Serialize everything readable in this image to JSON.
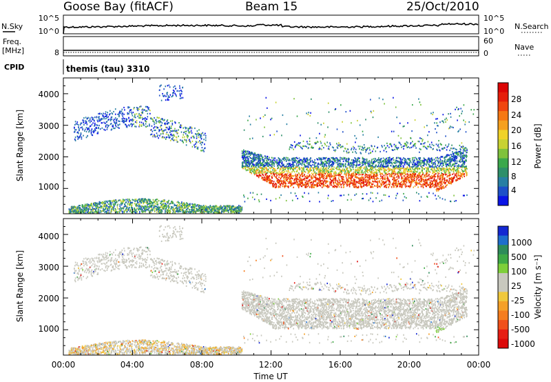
{
  "header": {
    "station": "Goose Bay (fitACF)",
    "beam": "Beam 15",
    "date": "25/Oct/2010"
  },
  "nsky_panel": {
    "left_label": "N.Sky",
    "left_ticks": [
      "10^5",
      "10^0"
    ],
    "right_ticks": [
      "10^5",
      "10^0"
    ],
    "right_label": "N.Search"
  },
  "freq_panel": {
    "left_label_1": "Freq.",
    "left_label_2": "[MHz]",
    "left_tick": "8",
    "right_ticks": [
      "60",
      "0"
    ],
    "right_label": "Nave"
  },
  "cpid": {
    "label": "CPID",
    "value": "themis (tau) 3310"
  },
  "chart_data": [
    {
      "type": "heatmap",
      "panel": "power",
      "ylabel": "Slant Range [km]",
      "yticks": [
        "1000",
        "2000",
        "3000",
        "4000"
      ],
      "ylim": [
        200,
        4500
      ],
      "colorbar": {
        "label": "Power [dB]",
        "ticks": [
          "4",
          "8",
          "12",
          "16",
          "20",
          "24",
          "28"
        ],
        "colors": [
          "#0a14e6",
          "#1e50c8",
          "#287fa3",
          "#2e8f6a",
          "#3ba84c",
          "#7fc23c",
          "#c8d232",
          "#f0d228",
          "#f5a01e",
          "#f57814",
          "#f0460f",
          "#e61e0a",
          "#dc0505"
        ]
      }
    },
    {
      "type": "heatmap",
      "panel": "velocity",
      "ylabel": "Slant Range [km]",
      "yticks": [
        "1000",
        "2000",
        "3000",
        "4000"
      ],
      "ylim": [
        200,
        4500
      ],
      "xlabel": "Time UT",
      "xticks": [
        "00:00",
        "04:00",
        "08:00",
        "12:00",
        "16:00",
        "20:00",
        "00:00"
      ],
      "colorbar": {
        "label": "Velocity [m s⁻¹]",
        "ticks": [
          "1000",
          "500",
          "100",
          "25",
          "-25",
          "-100",
          "-500",
          "-1000"
        ],
        "colors": [
          "#1428d2",
          "#1e6ecd",
          "#2e8c5a",
          "#3faa46",
          "#7ecf3a",
          "#c8c8be",
          "#c8c8be",
          "#f0c83c",
          "#f5a028",
          "#f57d1e",
          "#f0501a",
          "#e61e14",
          "#dc0a0a"
        ]
      }
    }
  ]
}
